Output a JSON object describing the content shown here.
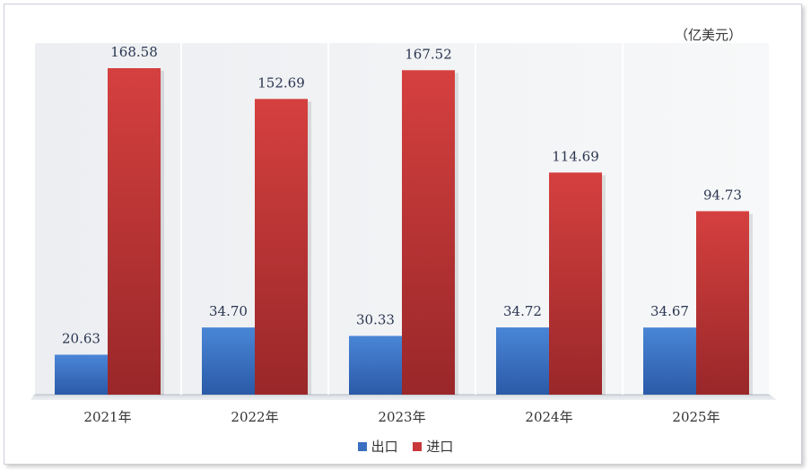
{
  "chart_data": {
    "type": "bar",
    "unit_label": "（亿美元）",
    "categories": [
      "2021年",
      "2022年",
      "2023年",
      "2024年",
      "2025年"
    ],
    "series": [
      {
        "name": "出口",
        "values": [
          20.63,
          34.7,
          30.33,
          34.72,
          34.67
        ],
        "labels": [
          "20.63",
          "34.70",
          "30.33",
          "34.72",
          "34.67"
        ],
        "color": "#3a6fc0"
      },
      {
        "name": "进口",
        "values": [
          168.58,
          152.69,
          167.52,
          114.69,
          94.73
        ],
        "labels": [
          "168.58",
          "152.69",
          "167.52",
          "114.69",
          "94.73"
        ],
        "color": "#c8383a"
      }
    ],
    "ylim": [
      0,
      190
    ],
    "grid": false,
    "legend_position": "bottom"
  }
}
